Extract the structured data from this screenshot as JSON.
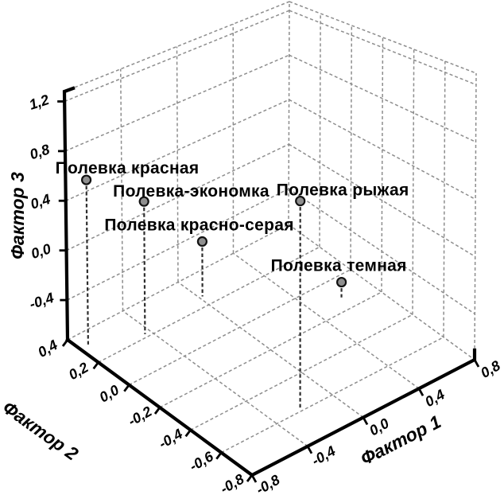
{
  "figure": {
    "background": "#ffffff",
    "description": "3D scatter plot of factor loadings for five vole species"
  },
  "chart_data": {
    "type": "scatter",
    "projection": "3d",
    "title": "",
    "legend": "none",
    "grid": "dashed",
    "axes": {
      "x": {
        "label": "Фактор 1",
        "range": [
          -0.8,
          0.8
        ],
        "ticks": [
          -0.8,
          -0.4,
          0,
          0.4,
          0.8
        ],
        "tick_labels": [
          "-0,8",
          "-0,4",
          "0,0",
          "0,4",
          "0,8"
        ]
      },
      "y": {
        "label": "Фактор 2",
        "range": [
          -0.8,
          0.4
        ],
        "ticks": [
          0.4,
          0.2,
          0,
          -0.2,
          -0.4,
          -0.6,
          -0.8
        ],
        "tick_labels": [
          "0,4",
          "0,2",
          "0,0",
          "-0,2",
          "-0,4",
          "-0,6",
          "-0,8"
        ]
      },
      "z": {
        "label": "Фактор 3",
        "range": [
          -0.72,
          1.28
        ],
        "ticks": [
          1.2,
          0.8,
          0.4,
          0,
          -0.4
        ],
        "tick_labels": [
          "1,2",
          "0,8",
          "0,4",
          "0,0",
          "-0,4"
        ]
      }
    },
    "series": [
      {
        "name": "vole-species",
        "points": [
          {
            "label": "Полевка красная",
            "x": -0.74,
            "y": 0.32,
            "z": 0.58
          },
          {
            "label": "Полевка-экономка",
            "x": -0.44,
            "y": 0.22,
            "z": 0.32
          },
          {
            "label": "Полевка красно-серая",
            "x": 0.02,
            "y": 0.26,
            "z": -0.27
          },
          {
            "label": "Полевка рыжая",
            "x": -0.21,
            "y": -0.58,
            "z": 0.64
          },
          {
            "label": "Полевка темная",
            "x": 0.6,
            "y": -0.12,
            "z": -0.6
          }
        ]
      }
    ],
    "style": {
      "marker_fill": "#8f8f8f",
      "marker_stroke": "#111111",
      "grid_color": "#8d8d8d",
      "drop_line_color": "#2e2e2e",
      "axis_color": "#000000",
      "drop_lines": true
    }
  }
}
